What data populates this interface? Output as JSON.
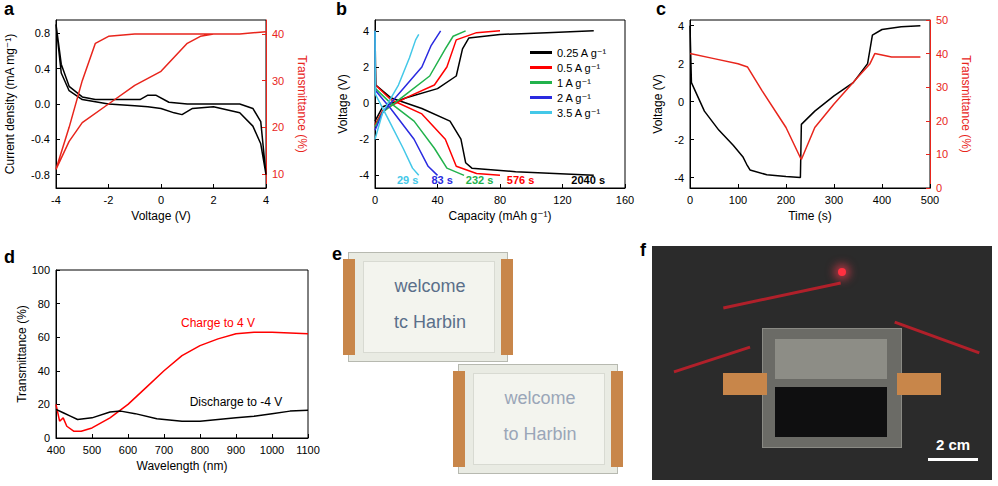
{
  "chart_data": [
    {
      "panel": "a",
      "type": "line",
      "x_label": "Voltage (V)",
      "y_label": "Current density (mA mg⁻¹)",
      "y2_label": "Transmittance (%)",
      "xlim": [
        -4,
        4
      ],
      "xticks": [
        -4,
        -2,
        0,
        2,
        4
      ],
      "ylim": [
        -0.95,
        0.95
      ],
      "yticks": [
        -0.8,
        -0.4,
        {
          "value": 0,
          "label": "0.0"
        },
        0.4,
        0.8
      ],
      "y2lim": [
        7,
        43
      ],
      "y2ticks": [
        10,
        20,
        30,
        40
      ],
      "grid": false,
      "series": [
        {
          "color": "#000000",
          "values": [
            [
              -4,
              0.9
            ],
            [
              -3.8,
              0.35
            ],
            [
              -3.5,
              0.15
            ],
            [
              -3,
              0.05
            ],
            [
              -2,
              0.0
            ],
            [
              -1,
              -0.02
            ],
            [
              -0.5,
              -0.03
            ],
            [
              0,
              -0.05
            ],
            [
              0.5,
              -0.1
            ],
            [
              0.8,
              -0.12
            ],
            [
              1.2,
              -0.05
            ],
            [
              2,
              -0.03
            ],
            [
              3,
              -0.1
            ],
            [
              3.5,
              -0.25
            ],
            [
              3.8,
              -0.45
            ],
            [
              4,
              -0.8
            ],
            [
              3.8,
              -0.2
            ],
            [
              3.5,
              -0.05
            ],
            [
              3,
              0.0
            ],
            [
              2,
              0.0
            ],
            [
              1,
              0.0
            ],
            [
              0.3,
              0.02
            ],
            [
              -0.2,
              0.1
            ],
            [
              -0.5,
              0.1
            ],
            [
              -0.8,
              0.05
            ],
            [
              -1.5,
              0.05
            ],
            [
              -2.5,
              0.05
            ],
            [
              -3,
              0.08
            ],
            [
              -3.5,
              0.2
            ],
            [
              -3.8,
              0.45
            ],
            [
              -4,
              0.9
            ]
          ]
        },
        {
          "color": "#e8251c",
          "axis": "y2",
          "values": [
            [
              -4,
              11
            ],
            [
              -3.5,
              17
            ],
            [
              -3,
              21
            ],
            [
              -2,
              25
            ],
            [
              -1,
              29
            ],
            [
              0,
              32
            ],
            [
              0.5,
              35
            ],
            [
              1,
              38
            ],
            [
              1.5,
              39.5
            ],
            [
              2,
              40
            ],
            [
              3,
              40
            ],
            [
              4,
              40.5
            ],
            [
              3,
              40
            ],
            [
              2,
              40
            ],
            [
              0,
              40
            ],
            [
              -1,
              40
            ],
            [
              -2,
              39.5
            ],
            [
              -2.5,
              38
            ],
            [
              -3,
              30
            ],
            [
              -3.5,
              20
            ],
            [
              -4,
              11
            ]
          ]
        }
      ]
    },
    {
      "panel": "b",
      "type": "line",
      "x_label": "Capacity (mAh g⁻¹)",
      "y_label": "Voltage (V)",
      "xlim": [
        0,
        160
      ],
      "xticks": [
        0,
        40,
        80,
        120,
        160
      ],
      "ylim": [
        -4.7,
        4.6
      ],
      "yticks": [
        -4,
        -2,
        0,
        2,
        4
      ],
      "grid": false,
      "legend": "upper right",
      "series": [
        {
          "name": "0.25 A g⁻¹",
          "color": "#000000",
          "values": [
            [
              0,
              -1.0
            ],
            [
              5,
              -0.2
            ],
            [
              20,
              0.3
            ],
            [
              40,
              0.8
            ],
            [
              52,
              1.5
            ],
            [
              56,
              3.0
            ],
            [
              60,
              3.6
            ],
            [
              80,
              3.8
            ],
            [
              110,
              3.9
            ],
            [
              140,
              4.0
            ],
            null,
            [
              0,
              4.0
            ],
            [
              0.5,
              1.0
            ],
            [
              10,
              0.3
            ],
            [
              30,
              -0.3
            ],
            [
              48,
              -1.0
            ],
            [
              55,
              -2.0
            ],
            [
              58,
              -3.3
            ],
            [
              62,
              -3.6
            ],
            [
              90,
              -3.8
            ],
            [
              140,
              -4.0
            ]
          ]
        },
        {
          "name": "0.5 A g⁻¹",
          "color": "#ff0000",
          "values": [
            [
              0,
              -1.2
            ],
            [
              5,
              -0.4
            ],
            [
              20,
              0.3
            ],
            [
              38,
              1.0
            ],
            [
              46,
              2.0
            ],
            [
              52,
              3.5
            ],
            [
              65,
              3.9
            ],
            [
              80,
              4.0
            ],
            null,
            [
              0,
              4.0
            ],
            [
              0.3,
              1.0
            ],
            [
              10,
              0.2
            ],
            [
              30,
              -0.6
            ],
            [
              45,
              -2.0
            ],
            [
              52,
              -3.5
            ],
            [
              65,
              -3.9
            ],
            [
              80,
              -4.0
            ]
          ]
        },
        {
          "name": "1 A g⁻¹",
          "color": "#22b24c",
          "values": [
            [
              0,
              -1.3
            ],
            [
              5,
              -0.5
            ],
            [
              20,
              0.5
            ],
            [
              35,
              1.5
            ],
            [
              45,
              3.0
            ],
            [
              50,
              3.7
            ],
            [
              58,
              4.0
            ],
            null,
            [
              0,
              4.0
            ],
            [
              0.3,
              0.8
            ],
            [
              10,
              0.0
            ],
            [
              25,
              -1.0
            ],
            [
              38,
              -2.5
            ],
            [
              46,
              -3.6
            ],
            [
              57,
              -4.0
            ]
          ]
        },
        {
          "name": "2 A g⁻¹",
          "color": "#2a2ae0",
          "values": [
            [
              0,
              -1.5
            ],
            [
              5,
              -0.5
            ],
            [
              18,
              0.8
            ],
            [
              30,
              2.0
            ],
            [
              36,
              3.2
            ],
            [
              42,
              4.0
            ],
            null,
            [
              0,
              4.0
            ],
            [
              0.3,
              0.7
            ],
            [
              10,
              -0.3
            ],
            [
              25,
              -2.0
            ],
            [
              34,
              -3.5
            ],
            [
              40,
              -4.0
            ]
          ]
        },
        {
          "name": "3.5 A g⁻¹",
          "color": "#44c8e8",
          "values": [
            [
              0,
              -2.0
            ],
            [
              5,
              -0.5
            ],
            [
              15,
              1.0
            ],
            [
              22,
              2.5
            ],
            [
              26,
              3.5
            ],
            [
              28,
              3.8
            ],
            null,
            [
              0,
              4.0
            ],
            [
              0.2,
              0.5
            ],
            [
              8,
              -0.8
            ],
            [
              18,
              -2.5
            ],
            [
              24,
              -3.6
            ],
            [
              28,
              -4.0
            ]
          ]
        }
      ],
      "annotations": [
        {
          "text": "29 s",
          "color": "#44c8e8"
        },
        {
          "text": "83 s",
          "color": "#2a2ae0"
        },
        {
          "text": "232 s",
          "color": "#22b24c"
        },
        {
          "text": "576 s",
          "color": "#ff0000"
        },
        {
          "text": "2040 s",
          "color": "#000000"
        }
      ]
    },
    {
      "panel": "c",
      "type": "line",
      "x_label": "Time (s)",
      "y_label": "Voltage (V)",
      "y2_label": "Transmittance (%)",
      "xlim": [
        0,
        500
      ],
      "xticks": [
        0,
        100,
        200,
        300,
        400,
        500
      ],
      "ylim": [
        -4.55,
        4.3
      ],
      "yticks": [
        -4,
        -2,
        0,
        2,
        4
      ],
      "y2lim": [
        0,
        50
      ],
      "y2ticks": [
        0,
        10,
        20,
        30,
        40,
        50
      ],
      "grid": false,
      "series": [
        {
          "color": "#000000",
          "values": [
            [
              0,
              4
            ],
            [
              3,
              1.0
            ],
            [
              30,
              -0.5
            ],
            [
              60,
              -1.5
            ],
            [
              90,
              -2.3
            ],
            [
              110,
              -2.9
            ],
            [
              118,
              -3.3
            ],
            [
              125,
              -3.6
            ],
            [
              160,
              -3.85
            ],
            [
              200,
              -3.95
            ],
            [
              230,
              -4.0
            ],
            [
              232,
              -1.2
            ],
            [
              260,
              -0.5
            ],
            [
              300,
              0.3
            ],
            [
              340,
              1.0
            ],
            [
              370,
              2.0
            ],
            [
              380,
              3.5
            ],
            [
              400,
              3.8
            ],
            [
              440,
              3.95
            ],
            [
              480,
              4.0
            ]
          ]
        },
        {
          "color": "#e8251c",
          "axis": "y2",
          "values": [
            [
              0,
              40
            ],
            [
              50,
              38.5
            ],
            [
              100,
              37
            ],
            [
              120,
              36
            ],
            [
              150,
              29
            ],
            [
              200,
              18
            ],
            [
              230,
              9
            ],
            [
              232,
              8.5
            ],
            [
              260,
              18
            ],
            [
              300,
              25
            ],
            [
              350,
              33
            ],
            [
              375,
              37
            ],
            [
              385,
              40
            ],
            [
              420,
              39
            ],
            [
              480,
              39
            ]
          ]
        }
      ]
    },
    {
      "panel": "d",
      "type": "line",
      "x_label": "Wavelength (nm)",
      "y_label": "Transmittance (%)",
      "xlim": [
        400,
        1100
      ],
      "xticks": [
        400,
        500,
        600,
        700,
        800,
        900,
        1000,
        1100
      ],
      "ylim": [
        0,
        100
      ],
      "yticks": [
        0,
        20,
        40,
        60,
        80,
        100
      ],
      "grid": false,
      "series": [
        {
          "name": "Charge to 4 V",
          "color": "#ff0000",
          "values": [
            [
              400,
              20
            ],
            [
              410,
              10
            ],
            [
              420,
              12
            ],
            [
              430,
              7
            ],
            [
              450,
              4
            ],
            [
              470,
              4
            ],
            [
              500,
              6
            ],
            [
              550,
              12
            ],
            [
              600,
              20
            ],
            [
              650,
              30
            ],
            [
              700,
              40
            ],
            [
              750,
              49
            ],
            [
              800,
              55
            ],
            [
              850,
              59
            ],
            [
              900,
              62
            ],
            [
              950,
              63
            ],
            [
              1000,
              63
            ],
            [
              1050,
              62.5
            ],
            [
              1100,
              62
            ]
          ]
        },
        {
          "name": "Discharge to -4 V",
          "color": "#000000",
          "values": [
            [
              400,
              17
            ],
            [
              420,
              15
            ],
            [
              440,
              13
            ],
            [
              460,
              11
            ],
            [
              500,
              12
            ],
            [
              550,
              15.5
            ],
            [
              580,
              16
            ],
            [
              620,
              14.5
            ],
            [
              680,
              11.5
            ],
            [
              750,
              10
            ],
            [
              800,
              10
            ],
            [
              850,
              11
            ],
            [
              900,
              12
            ],
            [
              950,
              13
            ],
            [
              1000,
              14.5
            ],
            [
              1050,
              16
            ],
            [
              1100,
              16.5
            ]
          ]
        }
      ]
    }
  ],
  "photos": [
    {
      "panel": "e",
      "images": [
        {
          "lines": [
            "welcome",
            "tc Harbin"
          ]
        },
        {
          "lines": [
            "welcome",
            "to Harbin"
          ]
        }
      ]
    },
    {
      "panel": "f",
      "scale_bar": "2 cm"
    }
  ]
}
